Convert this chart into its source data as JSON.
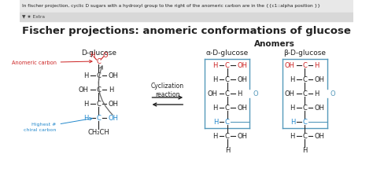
{
  "title": "Fischer projections: anomeric conformations of glucose",
  "title_fontsize": 9.5,
  "bg_color": "#f0f0f0",
  "white": "#ffffff",
  "text_color": "#222222",
  "red_color": "#cc2222",
  "blue_color": "#2288cc",
  "teal_color": "#5599bb",
  "gray_color": "#666666",
  "header_text": "In fischer projection, cyclic D sugars with a hydroxyl group to the right of the anomeric carbon are in the {{c1::alpha position }}",
  "extra_text": "▼ ★ Extra",
  "anomers_label": "Anomers",
  "d_glucose_label": "D-glucose",
  "alpha_label": "α-D-glucose",
  "beta_label": "β-D-glucose",
  "cyclization_label": "Cyclization\nreaction",
  "anomeric_carbon_label": "Anomeric carbon",
  "highest_chiral_label": "Highest #\nchiral carbon"
}
